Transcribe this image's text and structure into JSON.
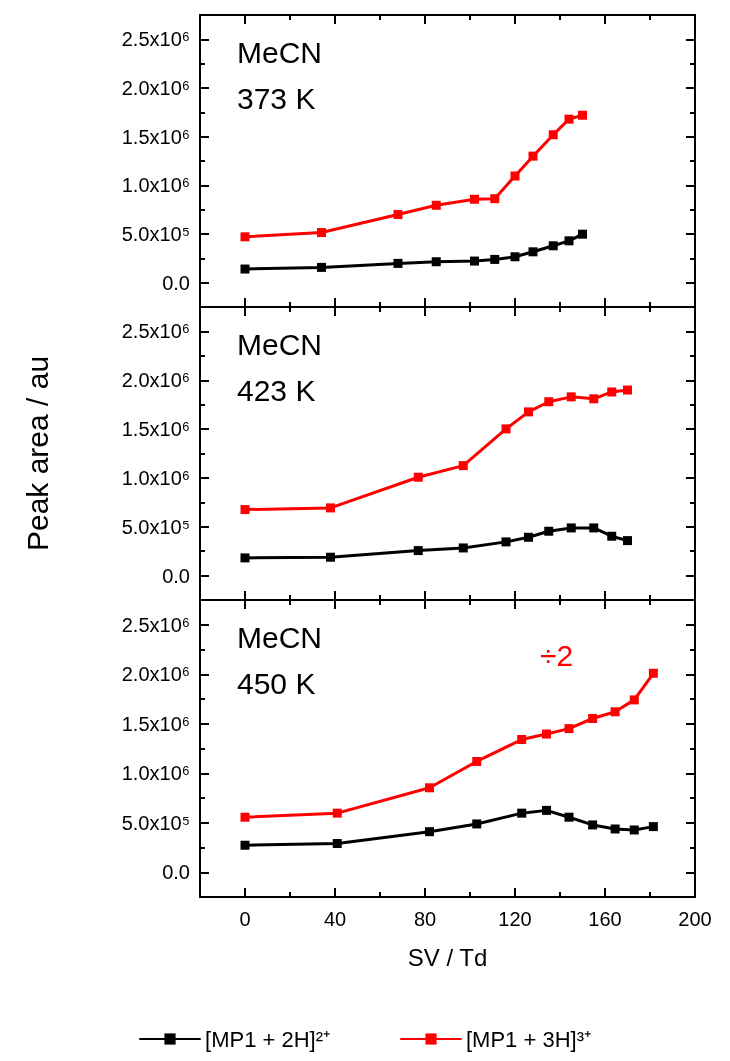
{
  "chart_data": [
    {
      "type": "line",
      "annotations": [
        "MeCN",
        "373 K"
      ],
      "xlim": [
        -20,
        200
      ],
      "xticks": [
        0,
        40,
        80,
        120,
        160,
        200
      ],
      "ylim": [
        -250000,
        2750000
      ],
      "yticks": [
        {
          "value": 0,
          "label": "0.0"
        },
        {
          "value": 500000,
          "label": "5.0x10⁵"
        },
        {
          "value": 1000000,
          "label": "1.0x10⁶"
        },
        {
          "value": 1500000,
          "label": "1.5x10⁶"
        },
        {
          "value": 2000000,
          "label": "2.0x10⁶"
        },
        {
          "value": 2500000,
          "label": "2.5x10⁶"
        }
      ],
      "tick_labels": "y",
      "marker": "square",
      "line_style": "solid",
      "grid": false,
      "series": [
        {
          "color": "#000000",
          "x": [
            0,
            34,
            68,
            85,
            102,
            111,
            120,
            128,
            137,
            144,
            150
          ],
          "values": [
            140000,
            157000,
            198000,
            215000,
            222000,
            239000,
            266000,
            317000,
            379000,
            430000,
            498000
          ]
        },
        {
          "color": "#ff0000",
          "x": [
            0,
            34,
            68,
            85,
            102,
            111,
            120,
            128,
            137,
            144,
            150
          ],
          "values": [
            471000,
            515000,
            700000,
            795000,
            857000,
            863000,
            1096000,
            1300000,
            1520000,
            1680000,
            1720000
          ]
        }
      ]
    },
    {
      "type": "line",
      "ylabel": "Peak area / au",
      "annotations": [
        "MeCN",
        "423 K"
      ],
      "xlim": [
        -20,
        200
      ],
      "xticks": [
        0,
        40,
        80,
        120,
        160,
        200
      ],
      "ylim": [
        -250000,
        2750000
      ],
      "yticks": [
        {
          "value": 0,
          "label": "0.0"
        },
        {
          "value": 500000,
          "label": "5.0x10⁵"
        },
        {
          "value": 1000000,
          "label": "1.0x10⁶"
        },
        {
          "value": 1500000,
          "label": "1.5x10⁶"
        },
        {
          "value": 2000000,
          "label": "2.0x10⁶"
        },
        {
          "value": 2500000,
          "label": "2.5x10⁶"
        }
      ],
      "tick_labels": "y",
      "marker": "square",
      "line_style": "solid",
      "grid": false,
      "series": [
        {
          "color": "#000000",
          "x": [
            0,
            38,
            77,
            97,
            116,
            126,
            135,
            145,
            155,
            163,
            170
          ],
          "values": [
            181000,
            188000,
            256000,
            283000,
            345000,
            392000,
            454000,
            488000,
            488000,
            403000,
            358000
          ]
        },
        {
          "color": "#ff0000",
          "x": [
            0,
            38,
            77,
            97,
            116,
            126,
            135,
            145,
            155,
            163,
            170
          ],
          "values": [
            676000,
            693000,
            1007000,
            1126000,
            1502000,
            1676000,
            1780000,
            1830000,
            1810000,
            1880000,
            1900000
          ]
        }
      ]
    },
    {
      "type": "line",
      "xlabel": "SV / Td",
      "annotations": [
        "MeCN",
        "450 K",
        "÷2"
      ],
      "xlim": [
        -20,
        200
      ],
      "xticks": [
        0,
        40,
        80,
        120,
        160,
        200
      ],
      "ylim": [
        -250000,
        2750000
      ],
      "yticks": [
        {
          "value": 0,
          "label": "0.0"
        },
        {
          "value": 500000,
          "label": "5.0x10⁵"
        },
        {
          "value": 1000000,
          "label": "1.0x10⁶"
        },
        {
          "value": 1500000,
          "label": "1.5x10⁶"
        },
        {
          "value": 2000000,
          "label": "2.0x10⁶"
        },
        {
          "value": 2500000,
          "label": "2.5x10⁶"
        }
      ],
      "marker": "square",
      "line_style": "solid",
      "grid": false,
      "legend": "bottom",
      "series": [
        {
          "name": "[MP1 + 2H]²⁺",
          "color": "#000000",
          "x": [
            0,
            41,
            82,
            103,
            123,
            134,
            144,
            154.5,
            164.5,
            173,
            181.5
          ],
          "values": [
            273000,
            290000,
            410000,
            488000,
            597000,
            625000,
            556000,
            478000,
            437000,
            427000,
            461000
          ]
        },
        {
          "name": "[MP1 + 3H]³⁺",
          "color": "#ff0000",
          "x": [
            0,
            41,
            82,
            103,
            123,
            134,
            144,
            154.5,
            164.5,
            173,
            181.5
          ],
          "values": [
            556000,
            597000,
            853000,
            1119000,
            1341000,
            1396000,
            1451000,
            1553000,
            1621000,
            1741000,
            2010000
          ]
        }
      ]
    }
  ]
}
